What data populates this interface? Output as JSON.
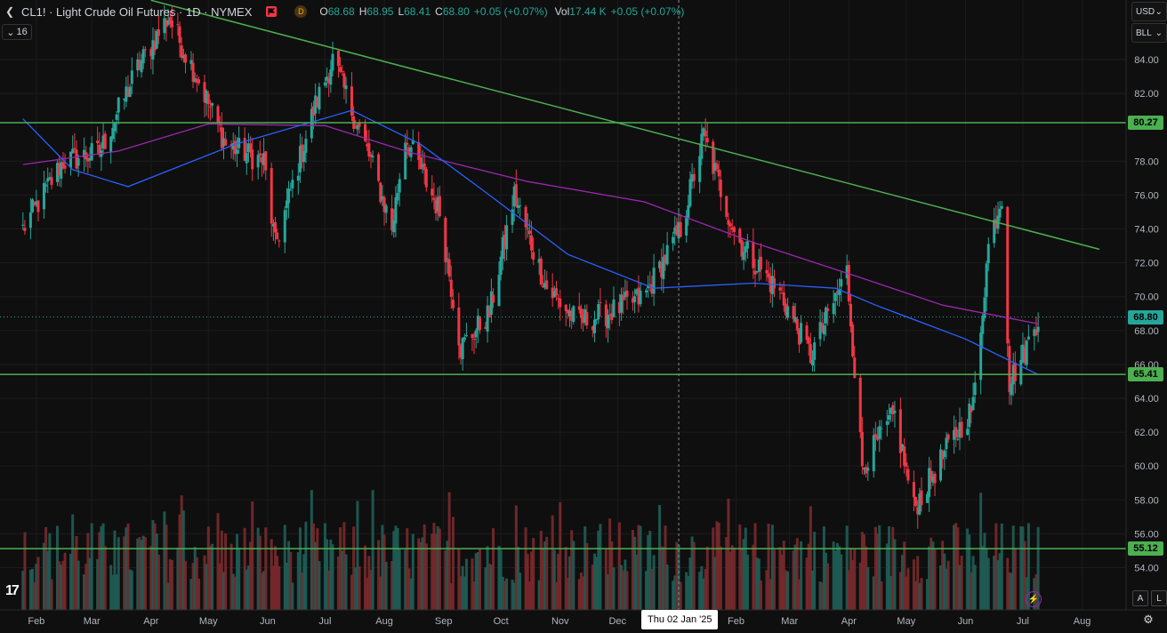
{
  "header": {
    "symbol_title": "CL1! · Light Crude Oil Futures · 1D · NYMEX",
    "d_badge": "D",
    "ohlc": {
      "open_key": "O",
      "open": "68.68",
      "high_key": "H",
      "high": "68.95",
      "low_key": "L",
      "low": "68.41",
      "close_key": "C",
      "close": "68.80",
      "change": "+0.05 (+0.07%)",
      "vol_key": "Vol",
      "vol": "17.44 K",
      "vol_change": "+0.05 (+0.07%)"
    },
    "indicator_count": "16"
  },
  "right_panel": {
    "currency": "USD",
    "unit": "BLL"
  },
  "colors": {
    "background": "#0f0f0f",
    "up": "#26a69a",
    "down": "#f23645",
    "level_line": "#4caf50",
    "ma_purple": "#9c27b0",
    "ma_blue": "#2962ff"
  },
  "chart_data": {
    "type": "candlestick",
    "price_range": [
      53,
      87
    ],
    "y_ticks": [
      "84.00",
      "82.00",
      "78.00",
      "76.00",
      "74.00",
      "72.00",
      "70.00",
      "68.00",
      "66.00",
      "64.00",
      "62.00",
      "60.00",
      "58.00",
      "56.00",
      "54.00"
    ],
    "x_axis": [
      "Feb",
      "Mar",
      "Apr",
      "May",
      "Jun",
      "Jul",
      "Aug",
      "Sep",
      "Oct",
      "Nov",
      "Dec",
      "Feb",
      "Mar",
      "Apr",
      "May",
      "Jun",
      "Jul",
      "Aug"
    ],
    "crosshair_date": "Thu 02 Jan '25",
    "levels": [
      {
        "value": 80.27,
        "label": "80.27"
      },
      {
        "value": 65.41,
        "label": "65.41"
      },
      {
        "value": 55.12,
        "label": "55.12"
      }
    ],
    "last_price": {
      "value": 68.8,
      "label": "68.80"
    },
    "trendline": {
      "from": [
        "2024-04-01",
        87.5
      ],
      "to": [
        "2025-08-10",
        72.8
      ]
    },
    "price_path": [
      [
        "2024-01-25",
        74
      ],
      [
        "2024-02-15",
        78
      ],
      [
        "2024-03-05",
        78.5
      ],
      [
        "2024-03-25",
        83.5
      ],
      [
        "2024-04-10",
        86.5
      ],
      [
        "2024-04-25",
        83
      ],
      [
        "2024-05-10",
        79
      ],
      [
        "2024-05-30",
        78
      ],
      [
        "2024-06-05",
        73
      ],
      [
        "2024-06-25",
        81
      ],
      [
        "2024-07-05",
        84
      ],
      [
        "2024-07-25",
        78
      ],
      [
        "2024-08-05",
        74
      ],
      [
        "2024-08-12",
        79.5
      ],
      [
        "2024-08-30",
        75
      ],
      [
        "2024-09-10",
        67
      ],
      [
        "2024-09-25",
        69
      ],
      [
        "2024-10-08",
        76
      ],
      [
        "2024-10-25",
        70.5
      ],
      [
        "2024-11-10",
        68.5
      ],
      [
        "2024-11-25",
        69
      ],
      [
        "2024-12-15",
        70
      ],
      [
        "2025-01-03",
        74
      ],
      [
        "2025-01-15",
        79.5
      ],
      [
        "2025-02-01",
        73.5
      ],
      [
        "2025-02-25",
        70
      ],
      [
        "2025-03-12",
        66.5
      ],
      [
        "2025-03-31",
        71.5
      ],
      [
        "2025-04-08",
        60
      ],
      [
        "2025-04-25",
        63
      ],
      [
        "2025-05-05",
        57.5
      ],
      [
        "2025-05-25",
        61.5
      ],
      [
        "2025-06-05",
        63.5
      ],
      [
        "2025-06-13",
        73
      ],
      [
        "2025-06-20",
        76
      ],
      [
        "2025-06-24",
        65
      ],
      [
        "2025-07-01",
        66.5
      ],
      [
        "2025-07-09",
        68.8
      ]
    ],
    "ma_purple_path": [
      [
        "2024-01-25",
        77.8
      ],
      [
        "2024-03-15",
        78.6
      ],
      [
        "2024-05-01",
        80.2
      ],
      [
        "2024-07-01",
        80.1
      ],
      [
        "2024-08-15",
        78.5
      ],
      [
        "2024-10-15",
        76.8
      ],
      [
        "2024-12-15",
        75.6
      ],
      [
        "2025-02-10",
        73.2
      ],
      [
        "2025-04-05",
        71.2
      ],
      [
        "2025-05-20",
        69.5
      ],
      [
        "2025-07-09",
        68.4
      ]
    ],
    "ma_blue_path": [
      [
        "2024-01-25",
        80.5
      ],
      [
        "2024-02-20",
        77.5
      ],
      [
        "2024-03-20",
        76.5
      ],
      [
        "2024-05-15",
        79
      ],
      [
        "2024-07-15",
        81
      ],
      [
        "2024-08-20",
        79
      ],
      [
        "2024-09-25",
        76
      ],
      [
        "2024-11-05",
        72.5
      ],
      [
        "2024-12-20",
        70.5
      ],
      [
        "2025-02-10",
        70.8
      ],
      [
        "2025-03-25",
        70.5
      ],
      [
        "2025-04-15",
        69.5
      ],
      [
        "2025-06-01",
        67.5
      ],
      [
        "2025-07-09",
        65.4
      ]
    ]
  }
}
